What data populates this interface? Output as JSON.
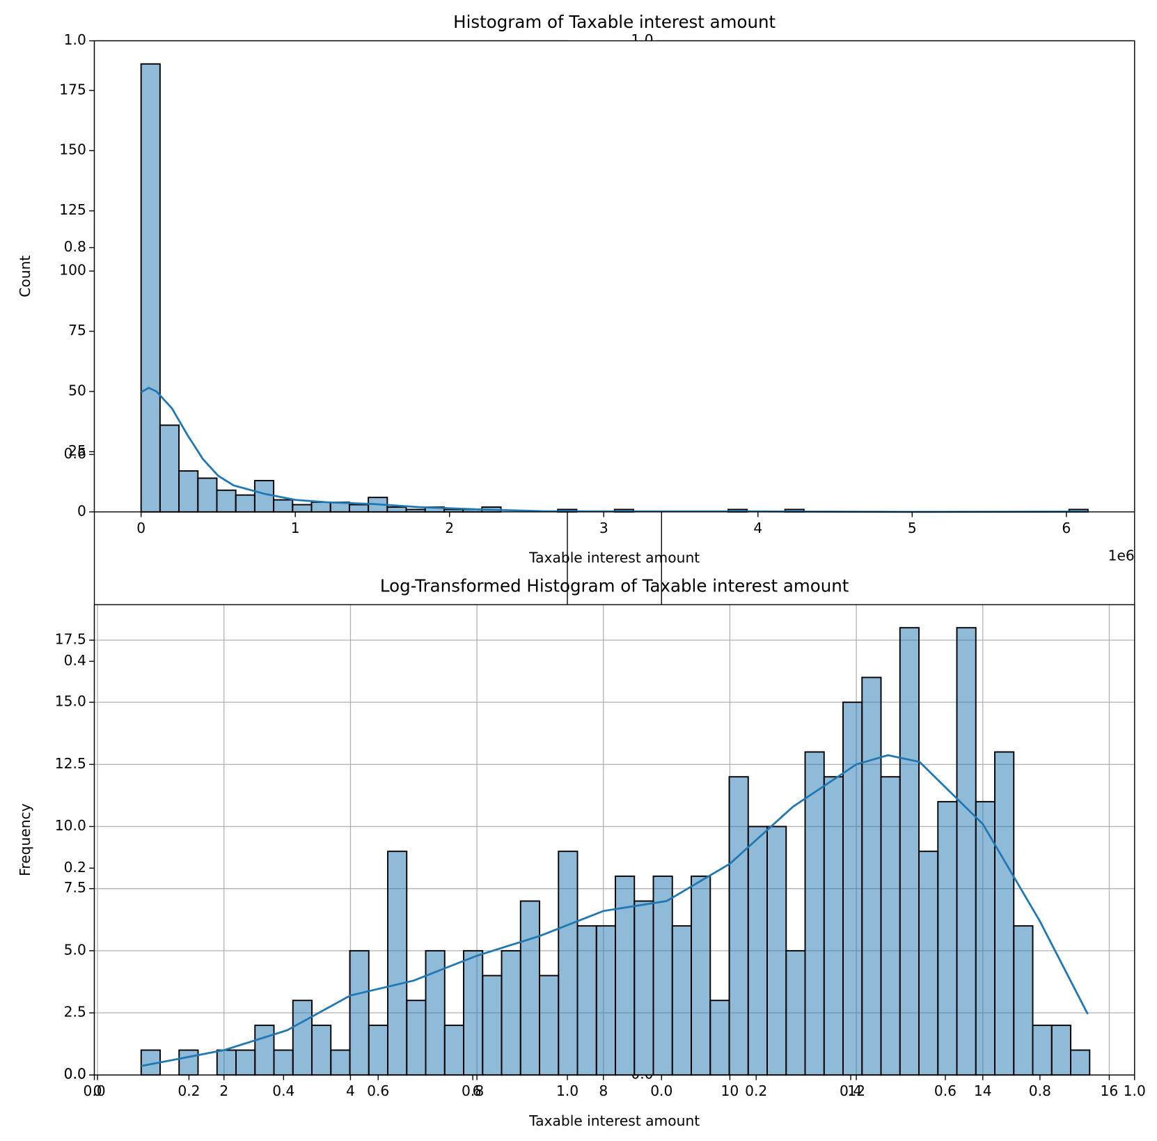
{
  "chart_data": [
    {
      "type": "blank",
      "xlim": [
        0,
        1
      ],
      "ylim": [
        0,
        1
      ],
      "xticks": [
        {
          "value": 0,
          "label": "0.0"
        },
        0.2,
        0.4,
        0.6,
        0.8,
        {
          "value": 1,
          "label": "1.0"
        }
      ],
      "yticks": [
        {
          "value": 0,
          "label": "0.0"
        },
        0.2,
        0.4,
        0.6,
        0.8,
        {
          "value": 1,
          "label": "1.0"
        }
      ]
    },
    {
      "type": "blank",
      "xlim": [
        0,
        1
      ],
      "ylim": [
        0,
        1
      ],
      "xticks": [
        {
          "value": 0,
          "label": "0.0"
        },
        0.2,
        0.4,
        0.6,
        0.8,
        {
          "value": 1,
          "label": "1.0"
        }
      ],
      "yticks": [
        {
          "value": 0,
          "label": "0.0"
        },
        0.2,
        0.4,
        0.6,
        0.8,
        {
          "value": 1,
          "label": "1.0"
        }
      ]
    },
    {
      "type": "histogram",
      "title": "Histogram of Taxable interest amount",
      "x_label": "Taxable interest amount",
      "y_label": "Count",
      "x_offset_label": "1e6",
      "color": "#1f77b4",
      "alpha": 0.5,
      "edgecolor": "#000000",
      "grid": false,
      "bins": [
        0,
        122800,
        245600,
        368400,
        491200,
        614000,
        736800,
        859600,
        982400,
        1105200,
        1228000,
        1350800,
        1473600,
        1596400,
        1719200,
        1842000,
        1964800,
        2087600,
        2210400,
        2333200,
        2456000,
        2578800,
        2701600,
        2824400,
        2947200,
        3070000,
        3192800,
        3315600,
        3438400,
        3561200,
        3684000,
        3806800,
        3929600,
        4052400,
        4175200,
        4298000,
        4420800,
        4543600,
        4666400,
        4789200,
        4912000,
        5034800,
        5157600,
        5280400,
        5403200,
        5526000,
        5648800,
        5771600,
        5894400,
        6017200,
        6140000
      ],
      "values": [
        186,
        36,
        17,
        14,
        9,
        7,
        13,
        5,
        3,
        4,
        4,
        3,
        6,
        2,
        1,
        2,
        1,
        1,
        2,
        0,
        0,
        0,
        1,
        0,
        0,
        1,
        0,
        0,
        0,
        0,
        0,
        1,
        0,
        0,
        1,
        0,
        0,
        0,
        0,
        0,
        0,
        0,
        0,
        0,
        0,
        0,
        0,
        0,
        0,
        1
      ],
      "kde": {
        "color": "#1f77b4",
        "x": [
          0,
          50000,
          100000,
          200000,
          300000,
          400000,
          500000,
          600000,
          800000,
          1000000,
          1200000,
          1500000,
          1800000,
          2200000,
          2600000,
          3000000,
          4000000,
          5000000,
          6140000
        ],
        "values": [
          49.7,
          51.5,
          50,
          43,
          32,
          22,
          15,
          11,
          7.5,
          5,
          4,
          3.3,
          2,
          1,
          0.3,
          0.2,
          0.2,
          0,
          0.1
        ]
      },
      "xlim": [
        -303000,
        6442000
      ],
      "ylim": [
        0,
        195.6
      ],
      "xticks": [
        0,
        {
          "value": 1000000,
          "label": "1"
        },
        {
          "value": 2000000,
          "label": "2"
        },
        {
          "value": 3000000,
          "label": "3"
        },
        {
          "value": 4000000,
          "label": "4"
        },
        {
          "value": 5000000,
          "label": "5"
        },
        {
          "value": 6000000,
          "label": "6"
        }
      ],
      "yticks": [
        0,
        25,
        50,
        75,
        100,
        125,
        150,
        175
      ]
    },
    {
      "type": "histogram",
      "title": "Log-Transformed Histogram of Taxable interest amount",
      "x_label": "Taxable interest amount",
      "y_label": "Frequency",
      "color": "#1f77b4",
      "alpha": 0.5,
      "edgecolor": "#000000",
      "grid": true,
      "bins": [
        0.69,
        0.99,
        1.29,
        1.59,
        1.89,
        2.19,
        2.49,
        2.79,
        3.09,
        3.39,
        3.69,
        3.99,
        4.29,
        4.59,
        4.89,
        5.19,
        5.49,
        5.79,
        6.09,
        6.39,
        6.69,
        6.99,
        7.29,
        7.59,
        7.89,
        8.19,
        8.49,
        8.79,
        9.09,
        9.39,
        9.69,
        9.99,
        10.29,
        10.59,
        10.89,
        11.19,
        11.49,
        11.79,
        12.09,
        12.39,
        12.69,
        12.99,
        13.29,
        13.59,
        13.89,
        14.19,
        14.49,
        14.79,
        15.09,
        15.39,
        15.69
      ],
      "values": [
        1,
        0,
        1,
        0,
        1,
        1,
        2,
        1,
        3,
        2,
        1,
        5,
        2,
        9,
        3,
        5,
        2,
        5,
        4,
        5,
        7,
        4,
        9,
        6,
        6,
        8,
        7,
        8,
        6,
        8,
        3,
        12,
        10,
        10,
        5,
        13,
        12,
        15,
        16,
        12,
        18,
        9,
        11,
        18,
        11,
        13,
        6,
        2,
        2,
        1
      ],
      "kde": {
        "color": "#1f77b4",
        "x": [
          0.69,
          2,
          3,
          4,
          5,
          6,
          7,
          8,
          9,
          10,
          11,
          12,
          12.5,
          13,
          14,
          14.9,
          15.66
        ],
        "values": [
          0.36,
          1.0,
          1.8,
          3.2,
          3.8,
          4.8,
          5.6,
          6.6,
          7.0,
          8.5,
          10.8,
          12.5,
          12.87,
          12.6,
          10.1,
          6.2,
          2.45
        ]
      },
      "xlim": [
        -0.05,
        16.4
      ],
      "ylim": [
        0,
        18.93
      ],
      "xticks": [
        0,
        2,
        4,
        6,
        8,
        10,
        12,
        14,
        16
      ],
      "yticks": [
        {
          "value": 0,
          "label": "0.0"
        },
        2.5,
        {
          "value": 5,
          "label": "5.0"
        },
        7.5,
        {
          "value": 10,
          "label": "10.0"
        },
        12.5,
        {
          "value": 15,
          "label": "15.0"
        },
        17.5
      ]
    }
  ]
}
